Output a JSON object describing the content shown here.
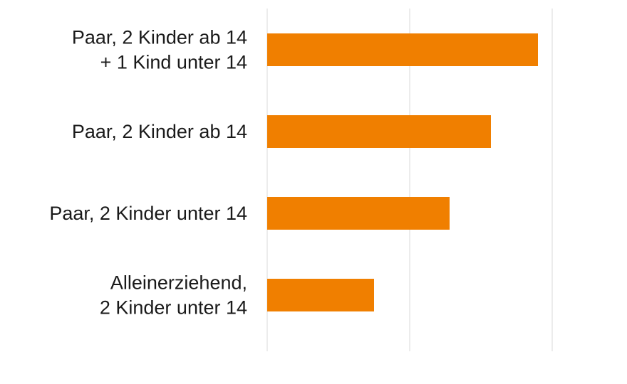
{
  "chart_data": {
    "type": "bar",
    "orientation": "horizontal",
    "categories": [
      [
        "Paar, 2 Kinder ab 14",
        "+ 1 Kind unter 14"
      ],
      [
        "Paar, 2 Kinder ab 14"
      ],
      [
        "Paar, 2 Kinder unter 14"
      ],
      [
        "Alleinerziehend,",
        "2 Kinder unter 14"
      ]
    ],
    "values": [
      1.9,
      1.57,
      1.28,
      0.75
    ],
    "xlim": [
      0,
      2.5
    ],
    "grid": true,
    "bar_color": "#f07f00",
    "grid_color": "#d9d9d9",
    "text_color": "#1a1a1a"
  }
}
